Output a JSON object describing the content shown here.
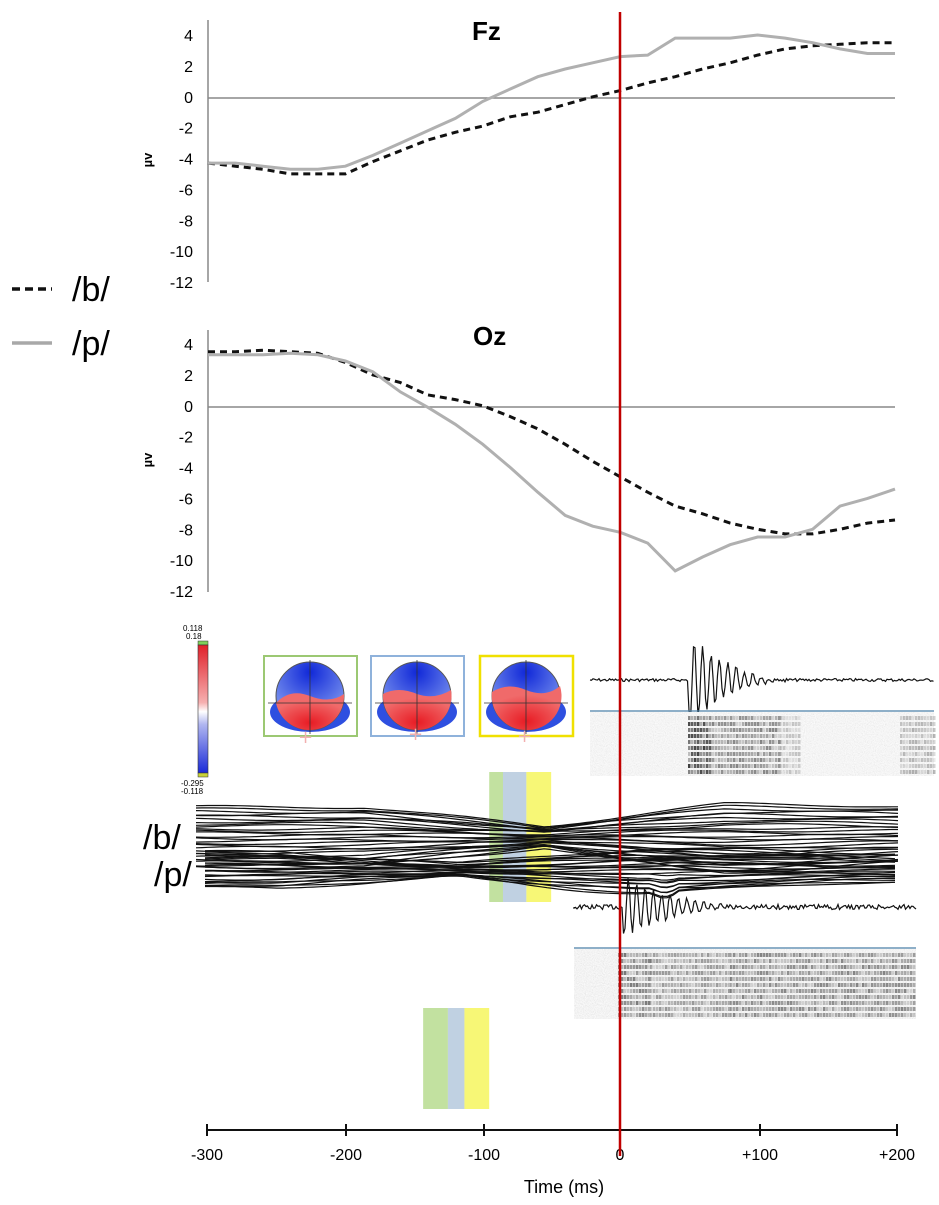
{
  "legend": [
    {
      "symbol_label": "/b/",
      "style": "dashed",
      "color": "#111111"
    },
    {
      "symbol_label": "/p/",
      "style": "solid",
      "color": "#b0b0b0"
    }
  ],
  "chart_data": [
    {
      "type": "line",
      "title": "Fz",
      "ylabel": "µv",
      "ylim": [
        -12,
        4
      ],
      "yticks": [
        4,
        2,
        0,
        -2,
        -4,
        -6,
        -8,
        -10,
        -12
      ],
      "xlim": [
        -300,
        200
      ],
      "series": [
        {
          "name": "/b/",
          "style": "dashed",
          "color": "#111111",
          "x": [
            -300,
            -280,
            -260,
            -240,
            -220,
            -200,
            -180,
            -160,
            -140,
            -120,
            -100,
            -80,
            -60,
            -40,
            -20,
            0,
            20,
            40,
            60,
            80,
            100,
            120,
            140,
            160,
            180,
            200
          ],
          "y": [
            -4.3,
            -4.5,
            -4.7,
            -5.0,
            -5.0,
            -5.0,
            -4.2,
            -3.5,
            -2.8,
            -2.3,
            -1.9,
            -1.3,
            -1.0,
            -0.5,
            0.0,
            0.4,
            0.9,
            1.3,
            1.8,
            2.2,
            2.7,
            3.1,
            3.3,
            3.4,
            3.5,
            3.5
          ]
        },
        {
          "name": "/p/",
          "style": "solid",
          "color": "#b0b0b0",
          "x": [
            -300,
            -280,
            -260,
            -240,
            -220,
            -200,
            -180,
            -160,
            -140,
            -120,
            -100,
            -80,
            -60,
            -40,
            -20,
            0,
            20,
            40,
            60,
            80,
            100,
            120,
            140,
            160,
            180,
            200
          ],
          "y": [
            -4.3,
            -4.3,
            -4.5,
            -4.7,
            -4.7,
            -4.5,
            -3.8,
            -3.0,
            -2.2,
            -1.4,
            -0.3,
            0.5,
            1.3,
            1.8,
            2.2,
            2.6,
            2.7,
            3.8,
            3.8,
            3.8,
            4.0,
            3.8,
            3.5,
            3.1,
            2.8,
            2.8
          ]
        }
      ]
    },
    {
      "type": "line",
      "title": "Oz",
      "ylabel": "µv",
      "ylim": [
        -12,
        4
      ],
      "yticks": [
        4,
        2,
        0,
        -2,
        -4,
        -6,
        -8,
        -10,
        -12
      ],
      "xlim": [
        -300,
        200
      ],
      "series": [
        {
          "name": "/b/",
          "style": "dashed",
          "color": "#111111",
          "x": [
            -300,
            -280,
            -260,
            -240,
            -220,
            -200,
            -180,
            -160,
            -140,
            -120,
            -100,
            -80,
            -60,
            -40,
            -20,
            0,
            20,
            40,
            60,
            80,
            100,
            120,
            140,
            160,
            180,
            200
          ],
          "y": [
            3.5,
            3.5,
            3.6,
            3.5,
            3.4,
            2.8,
            2.0,
            1.5,
            0.7,
            0.4,
            0.0,
            -0.7,
            -1.5,
            -2.5,
            -3.6,
            -4.6,
            -5.6,
            -6.5,
            -7.0,
            -7.6,
            -8.0,
            -8.3,
            -8.3,
            -8.0,
            -7.6,
            -7.4
          ]
        },
        {
          "name": "/p/",
          "style": "solid",
          "color": "#b0b0b0",
          "x": [
            -300,
            -280,
            -260,
            -240,
            -220,
            -200,
            -180,
            -160,
            -140,
            -120,
            -100,
            -80,
            -60,
            -40,
            -20,
            0,
            20,
            40,
            60,
            80,
            100,
            120,
            140,
            160,
            180,
            200
          ],
          "y": [
            3.3,
            3.3,
            3.3,
            3.4,
            3.3,
            2.9,
            2.2,
            0.9,
            -0.1,
            -1.2,
            -2.5,
            -4.0,
            -5.6,
            -7.1,
            -7.8,
            -8.2,
            -8.9,
            -10.7,
            -9.8,
            -9.0,
            -8.5,
            -8.5,
            -8.0,
            -6.5,
            -6.0,
            -5.4
          ]
        }
      ]
    },
    {
      "type": "line",
      "xlabel": "Time (ms)",
      "xticks": [
        "-300",
        "-200",
        "-100",
        "0",
        "+100",
        "+200"
      ],
      "xlim": [
        -300,
        200
      ],
      "onset_marker_ms": 0,
      "rows": [
        {
          "label": "/b/",
          "windows_ms": [
            {
              "from": -95,
              "to": -85,
              "color": "#b7dc8f"
            },
            {
              "from": -85,
              "to": -68,
              "color": "#b5c9dd"
            },
            {
              "from": -68,
              "to": -50,
              "color": "#f6f65e"
            }
          ]
        },
        {
          "label": "/p/",
          "windows_ms": [
            {
              "from": -143,
              "to": -125,
              "color": "#b7dc8f"
            },
            {
              "from": -125,
              "to": -113,
              "color": "#b5c9dd"
            },
            {
              "from": -113,
              "to": -95,
              "color": "#f6f65e"
            }
          ]
        }
      ],
      "colorbar": {
        "max_label": "0.118",
        "max_label2": "0.18",
        "min_label": "-0.295",
        "min_label2": "-0.118"
      },
      "topomap_frame_colors": [
        "#9cc873",
        "#8fb2db",
        "#f0e000"
      ]
    }
  ]
}
